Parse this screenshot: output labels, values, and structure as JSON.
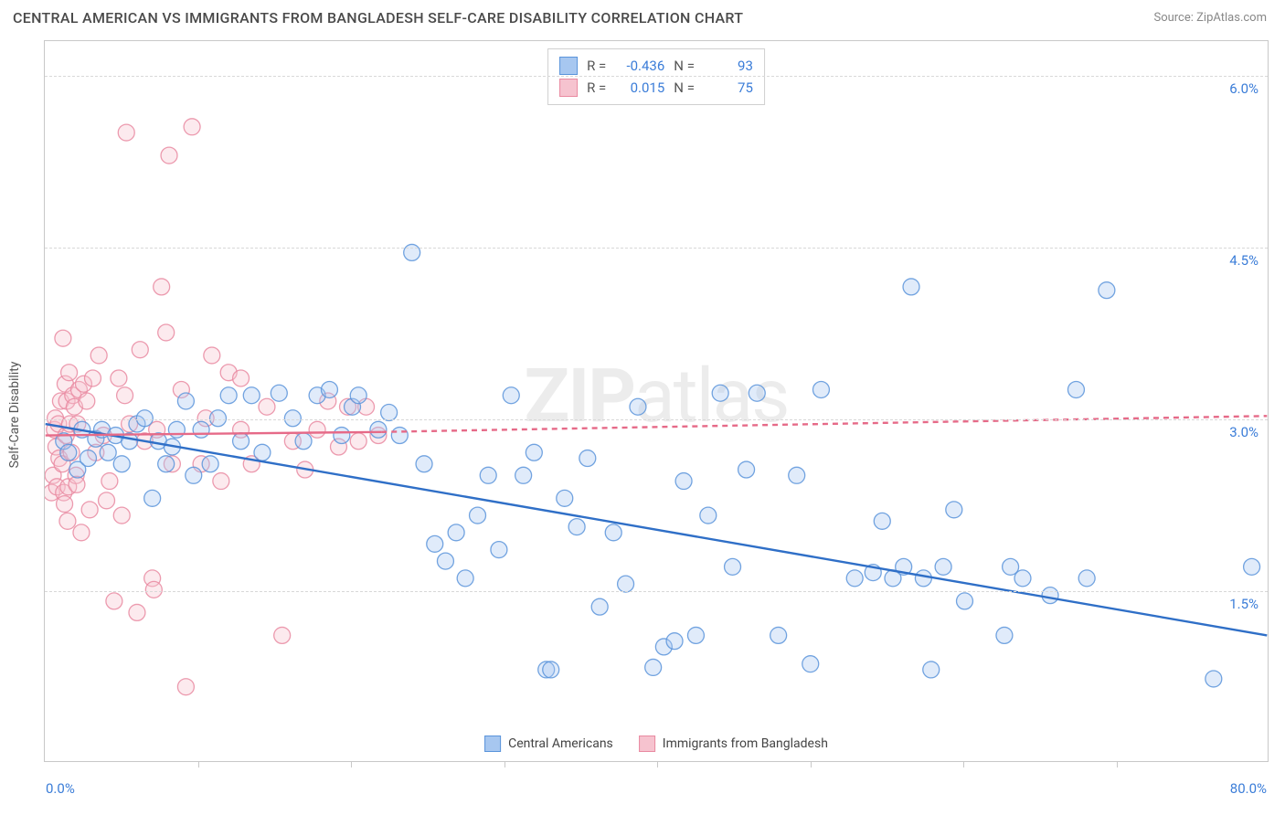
{
  "title": "CENTRAL AMERICAN VS IMMIGRANTS FROM BANGLADESH SELF-CARE DISABILITY CORRELATION CHART",
  "source_prefix": "Source: ",
  "source_name": "ZipAtlas.com",
  "watermark_bold": "ZIP",
  "watermark_rest": "atlas",
  "ylabel": "Self-Care Disability",
  "chart": {
    "type": "scatter",
    "xlim": [
      0,
      80
    ],
    "ylim": [
      0,
      6.3
    ],
    "background_color": "#ffffff",
    "border_color": "#c8c8c8",
    "grid_color": "#d8d8d8",
    "ytick_values": [
      1.5,
      3.0,
      4.5,
      6.0
    ],
    "ytick_labels": [
      "1.5%",
      "3.0%",
      "4.5%",
      "6.0%"
    ],
    "xtick_values": [
      10,
      20,
      30,
      40,
      50,
      60,
      70
    ],
    "x_min_label": "0.0%",
    "x_max_label": "80.0%",
    "marker_radius": 9,
    "marker_fill_opacity": 0.35,
    "marker_stroke_opacity": 0.85,
    "marker_stroke_width": 1.3,
    "trend_stroke_width": 2.4
  },
  "legend_stats": {
    "rows": [
      {
        "swatch_fill": "#a7c7f0",
        "swatch_border": "#5a94db",
        "r_label": "R =",
        "r_value": "-0.436",
        "n_label": "N =",
        "n_value": "93"
      },
      {
        "swatch_fill": "#f6c3cf",
        "swatch_border": "#e98aa1",
        "r_label": "R =",
        "r_value": "0.015",
        "n_label": "N =",
        "n_value": "75"
      }
    ]
  },
  "footer_legend": [
    {
      "swatch_fill": "#a7c7f0",
      "swatch_border": "#5a94db",
      "label": "Central Americans"
    },
    {
      "swatch_fill": "#f6c3cf",
      "swatch_border": "#e98aa1",
      "label": "Immigrants from Bangladesh"
    }
  ],
  "series": {
    "blue": {
      "fill": "#a7c7f0",
      "stroke": "#5a94db",
      "trend_color": "#2f6fc7",
      "trend": {
        "x1": 0,
        "y1": 2.95,
        "x2": 80,
        "y2": 1.1
      },
      "points": [
        [
          1.2,
          2.8
        ],
        [
          1.5,
          2.7
        ],
        [
          2.1,
          2.55
        ],
        [
          2.4,
          2.9
        ],
        [
          2.8,
          2.65
        ],
        [
          3.3,
          2.82
        ],
        [
          3.7,
          2.9
        ],
        [
          4.1,
          2.7
        ],
        [
          4.6,
          2.85
        ],
        [
          5.0,
          2.6
        ],
        [
          5.5,
          2.8
        ],
        [
          6.0,
          2.95
        ],
        [
          6.5,
          3.0
        ],
        [
          7.0,
          2.3
        ],
        [
          7.4,
          2.8
        ],
        [
          7.9,
          2.6
        ],
        [
          8.3,
          2.75
        ],
        [
          8.6,
          2.9
        ],
        [
          9.2,
          3.15
        ],
        [
          9.7,
          2.5
        ],
        [
          10.2,
          2.9
        ],
        [
          10.8,
          2.6
        ],
        [
          11.3,
          3.0
        ],
        [
          12.0,
          3.2
        ],
        [
          12.8,
          2.8
        ],
        [
          13.5,
          3.2
        ],
        [
          14.2,
          2.7
        ],
        [
          15.3,
          3.22
        ],
        [
          16.2,
          3.0
        ],
        [
          16.9,
          2.8
        ],
        [
          17.8,
          3.2
        ],
        [
          18.6,
          3.25
        ],
        [
          19.4,
          2.85
        ],
        [
          20.1,
          3.1
        ],
        [
          20.5,
          3.2
        ],
        [
          21.8,
          2.9
        ],
        [
          22.5,
          3.05
        ],
        [
          23.2,
          2.85
        ],
        [
          24.0,
          4.45
        ],
        [
          24.8,
          2.6
        ],
        [
          25.5,
          1.9
        ],
        [
          26.2,
          1.75
        ],
        [
          26.9,
          2.0
        ],
        [
          27.5,
          1.6
        ],
        [
          28.3,
          2.15
        ],
        [
          29.0,
          2.5
        ],
        [
          29.7,
          1.85
        ],
        [
          30.5,
          3.2
        ],
        [
          31.3,
          2.5
        ],
        [
          32.0,
          2.7
        ],
        [
          32.8,
          0.8
        ],
        [
          33.1,
          0.8
        ],
        [
          34.0,
          2.3
        ],
        [
          34.8,
          2.05
        ],
        [
          35.5,
          2.65
        ],
        [
          36.3,
          1.35
        ],
        [
          37.2,
          2.0
        ],
        [
          38.0,
          1.55
        ],
        [
          38.8,
          3.1
        ],
        [
          39.8,
          0.82
        ],
        [
          40.5,
          1.0
        ],
        [
          41.2,
          1.05
        ],
        [
          41.8,
          2.45
        ],
        [
          42.6,
          1.1
        ],
        [
          43.4,
          2.15
        ],
        [
          44.2,
          3.22
        ],
        [
          45.0,
          1.7
        ],
        [
          45.9,
          2.55
        ],
        [
          46.6,
          3.22
        ],
        [
          48.0,
          1.1
        ],
        [
          49.2,
          2.5
        ],
        [
          50.1,
          0.85
        ],
        [
          50.8,
          3.25
        ],
        [
          53.0,
          1.6
        ],
        [
          54.2,
          1.65
        ],
        [
          54.8,
          2.1
        ],
        [
          55.5,
          1.6
        ],
        [
          56.2,
          1.7
        ],
        [
          56.7,
          4.15
        ],
        [
          57.5,
          1.6
        ],
        [
          58.0,
          0.8
        ],
        [
          58.8,
          1.7
        ],
        [
          59.5,
          2.2
        ],
        [
          60.2,
          1.4
        ],
        [
          62.8,
          1.1
        ],
        [
          63.2,
          1.7
        ],
        [
          64.0,
          1.6
        ],
        [
          65.8,
          1.45
        ],
        [
          67.5,
          3.25
        ],
        [
          68.2,
          1.6
        ],
        [
          69.5,
          4.12
        ],
        [
          76.5,
          0.72
        ],
        [
          79.0,
          1.7
        ]
      ]
    },
    "pink": {
      "fill": "#f6c3cf",
      "stroke": "#e98aa1",
      "trend_color": "#e66a88",
      "trend_solid": {
        "x1": 0,
        "y1": 2.85,
        "x2": 22,
        "y2": 2.88
      },
      "trend_dash": {
        "x1": 22,
        "y1": 2.88,
        "x2": 80,
        "y2": 3.02
      },
      "points": [
        [
          0.4,
          2.35
        ],
        [
          0.5,
          2.5
        ],
        [
          0.6,
          2.9
        ],
        [
          0.65,
          3.0
        ],
        [
          0.7,
          2.75
        ],
        [
          0.75,
          2.4
        ],
        [
          0.85,
          2.95
        ],
        [
          0.9,
          2.65
        ],
        [
          1.0,
          3.15
        ],
        [
          1.1,
          2.6
        ],
        [
          1.15,
          3.7
        ],
        [
          1.2,
          2.35
        ],
        [
          1.25,
          2.25
        ],
        [
          1.3,
          3.3
        ],
        [
          1.35,
          2.85
        ],
        [
          1.4,
          3.15
        ],
        [
          1.45,
          2.1
        ],
        [
          1.5,
          2.4
        ],
        [
          1.55,
          3.4
        ],
        [
          1.6,
          2.95
        ],
        [
          1.7,
          2.7
        ],
        [
          1.8,
          3.2
        ],
        [
          1.9,
          3.1
        ],
        [
          2.0,
          2.5
        ],
        [
          2.05,
          2.42
        ],
        [
          2.1,
          2.95
        ],
        [
          2.2,
          3.25
        ],
        [
          2.35,
          2.0
        ],
        [
          2.5,
          3.3
        ],
        [
          2.7,
          3.15
        ],
        [
          2.9,
          2.2
        ],
        [
          3.1,
          3.35
        ],
        [
          3.3,
          2.7
        ],
        [
          3.5,
          3.55
        ],
        [
          3.8,
          2.85
        ],
        [
          4.0,
          2.28
        ],
        [
          4.2,
          2.45
        ],
        [
          4.5,
          1.4
        ],
        [
          4.8,
          3.35
        ],
        [
          5.0,
          2.15
        ],
        [
          5.2,
          3.2
        ],
        [
          5.3,
          5.5
        ],
        [
          5.5,
          2.95
        ],
        [
          6.0,
          1.3
        ],
        [
          6.2,
          3.6
        ],
        [
          6.5,
          2.8
        ],
        [
          7.0,
          1.6
        ],
        [
          7.1,
          1.5
        ],
        [
          7.3,
          2.9
        ],
        [
          7.6,
          4.15
        ],
        [
          7.9,
          3.75
        ],
        [
          8.1,
          5.3
        ],
        [
          8.3,
          2.6
        ],
        [
          8.9,
          3.25
        ],
        [
          9.2,
          0.65
        ],
        [
          9.6,
          5.55
        ],
        [
          10.2,
          2.6
        ],
        [
          10.5,
          3.0
        ],
        [
          10.9,
          3.55
        ],
        [
          11.5,
          2.45
        ],
        [
          12.0,
          3.4
        ],
        [
          12.8,
          2.9
        ],
        [
          12.8,
          3.35
        ],
        [
          13.5,
          2.6
        ],
        [
          14.5,
          3.1
        ],
        [
          15.5,
          1.1
        ],
        [
          16.2,
          2.8
        ],
        [
          17.0,
          2.55
        ],
        [
          17.8,
          2.9
        ],
        [
          18.5,
          3.15
        ],
        [
          19.2,
          2.75
        ],
        [
          19.8,
          3.1
        ],
        [
          20.5,
          2.8
        ],
        [
          21.0,
          3.1
        ],
        [
          21.8,
          2.85
        ]
      ]
    }
  }
}
